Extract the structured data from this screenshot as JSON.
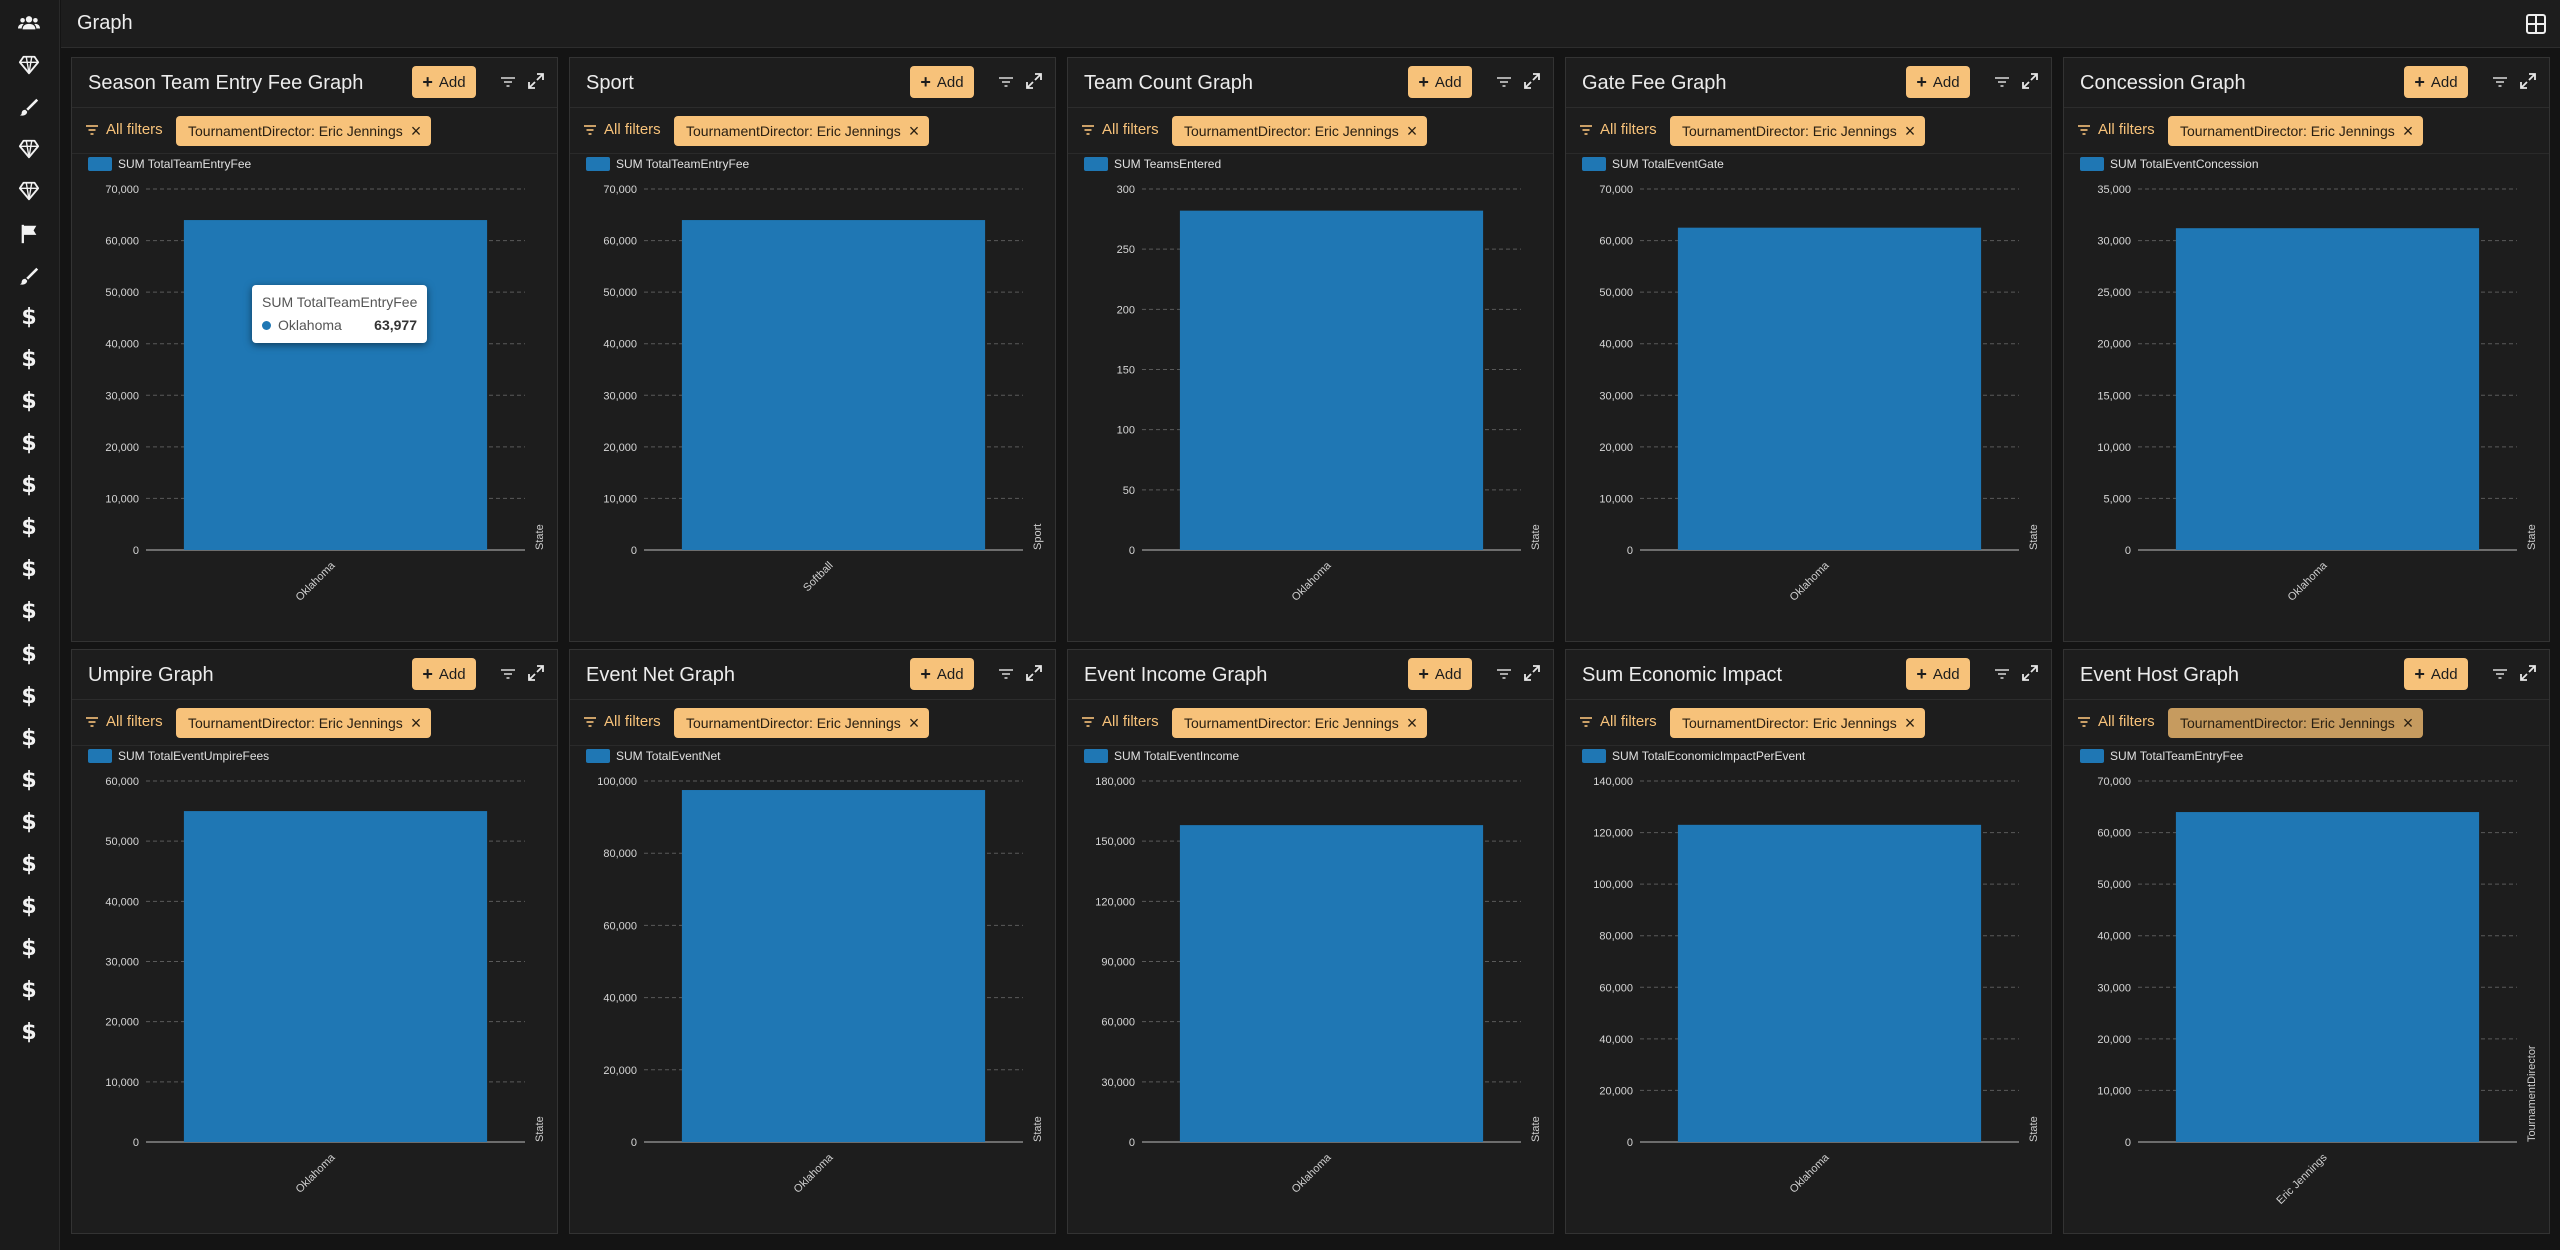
{
  "topbar": {
    "title": "Graph"
  },
  "sidebar": {
    "icons": [
      "users-icon",
      "gem-icon",
      "brush-icon",
      "gem-icon",
      "gem-icon",
      "flag-icon",
      "brush-icon",
      "dollar-icon",
      "dollar-icon",
      "dollar-icon",
      "dollar-icon",
      "dollar-icon",
      "dollar-icon",
      "dollar-icon",
      "dollar-icon",
      "dollar-icon",
      "dollar-icon",
      "dollar-icon",
      "dollar-icon",
      "dollar-icon",
      "dollar-icon",
      "dollar-icon",
      "dollar-icon",
      "dollar-icon",
      "dollar-icon"
    ],
    "dollar_glyph": "$"
  },
  "common": {
    "add_label": "Add",
    "all_filters_label": "All filters",
    "chip_close": "×"
  },
  "colors": {
    "bar": "#1f77b4",
    "accent": "#f7c27a",
    "background": "#1d1d1d"
  },
  "tooltip": {
    "title": "SUM TotalTeamEntryFee",
    "name": "Oklahoma",
    "value": "63,977"
  },
  "panels": [
    {
      "title": "Season Team Entry Fee Graph",
      "filter": "TournamentDirector: Eric Jennings",
      "chart_data": {
        "type": "bar",
        "categories": [
          "Oklahoma"
        ],
        "series": [
          {
            "name": "SUM TotalTeamEntryFee",
            "values": [
              63977
            ]
          }
        ],
        "ylim": [
          0,
          70000
        ],
        "yticks": [
          "0",
          "10,000",
          "20,000",
          "30,000",
          "40,000",
          "50,000",
          "60,000",
          "70,000"
        ],
        "xlabel": "State",
        "grid": true,
        "legend": "top-left"
      }
    },
    {
      "title": "Sport",
      "filter": "TournamentDirector: Eric Jennings",
      "chart_data": {
        "type": "bar",
        "categories": [
          "Softball"
        ],
        "series": [
          {
            "name": "SUM TotalTeamEntryFee",
            "values": [
              63977
            ]
          }
        ],
        "ylim": [
          0,
          70000
        ],
        "yticks": [
          "0",
          "10,000",
          "20,000",
          "30,000",
          "40,000",
          "50,000",
          "60,000",
          "70,000"
        ],
        "xlabel": "Sport",
        "grid": true,
        "legend": "top-left"
      }
    },
    {
      "title": "Team Count Graph",
      "filter": "TournamentDirector: Eric Jennings",
      "chart_data": {
        "type": "bar",
        "categories": [
          "Oklahoma"
        ],
        "series": [
          {
            "name": "SUM TeamsEntered",
            "values": [
              282
            ]
          }
        ],
        "ylim": [
          0,
          300
        ],
        "yticks": [
          "0",
          "50",
          "100",
          "150",
          "200",
          "250",
          "300"
        ],
        "xlabel": "State",
        "grid": true,
        "legend": "top-left"
      }
    },
    {
      "title": "Gate Fee Graph",
      "filter": "TournamentDirector: Eric Jennings",
      "chart_data": {
        "type": "bar",
        "categories": [
          "Oklahoma"
        ],
        "series": [
          {
            "name": "SUM TotalEventGate",
            "values": [
              62500
            ]
          }
        ],
        "ylim": [
          0,
          70000
        ],
        "yticks": [
          "0",
          "10,000",
          "20,000",
          "30,000",
          "40,000",
          "50,000",
          "60,000",
          "70,000"
        ],
        "xlabel": "State",
        "grid": true,
        "legend": "top-left"
      }
    },
    {
      "title": "Concession Graph",
      "filter": "TournamentDirector: Eric Jennings",
      "chart_data": {
        "type": "bar",
        "categories": [
          "Oklahoma"
        ],
        "series": [
          {
            "name": "SUM TotalEventConcession",
            "values": [
              31200
            ]
          }
        ],
        "ylim": [
          0,
          35000
        ],
        "yticks": [
          "0",
          "5,000",
          "10,000",
          "15,000",
          "20,000",
          "25,000",
          "30,000",
          "35,000"
        ],
        "xlabel": "State",
        "grid": true,
        "legend": "top-left"
      }
    },
    {
      "title": "Umpire Graph",
      "filter": "TournamentDirector: Eric Jennings",
      "chart_data": {
        "type": "bar",
        "categories": [
          "Oklahoma"
        ],
        "series": [
          {
            "name": "SUM TotalEventUmpireFees",
            "values": [
              55000
            ]
          }
        ],
        "ylim": [
          0,
          60000
        ],
        "yticks": [
          "0",
          "10,000",
          "20,000",
          "30,000",
          "40,000",
          "50,000",
          "60,000"
        ],
        "xlabel": "State",
        "grid": true,
        "legend": "top-left"
      }
    },
    {
      "title": "Event Net Graph",
      "filter": "TournamentDirector: Eric Jennings",
      "chart_data": {
        "type": "bar",
        "categories": [
          "Oklahoma"
        ],
        "series": [
          {
            "name": "SUM TotalEventNet",
            "values": [
              97500
            ]
          }
        ],
        "ylim": [
          0,
          100000
        ],
        "yticks": [
          "0",
          "20,000",
          "40,000",
          "60,000",
          "80,000",
          "100,000"
        ],
        "xlabel": "State",
        "grid": true,
        "legend": "top-left"
      }
    },
    {
      "title": "Event Income Graph",
      "filter": "TournamentDirector: Eric Jennings",
      "chart_data": {
        "type": "bar",
        "categories": [
          "Oklahoma"
        ],
        "series": [
          {
            "name": "SUM TotalEventIncome",
            "values": [
              158000
            ]
          }
        ],
        "ylim": [
          0,
          180000
        ],
        "yticks": [
          "0",
          "30,000",
          "60,000",
          "90,000",
          "120,000",
          "150,000",
          "180,000"
        ],
        "xlabel": "State",
        "grid": true,
        "legend": "top-left"
      }
    },
    {
      "title": "Sum Economic Impact",
      "filter": "TournamentDirector: Eric Jennings",
      "chart_data": {
        "type": "bar",
        "categories": [
          "Oklahoma"
        ],
        "series": [
          {
            "name": "SUM TotalEconomicImpactPerEvent",
            "values": [
              123000
            ]
          }
        ],
        "ylim": [
          0,
          140000
        ],
        "yticks": [
          "0",
          "20,000",
          "40,000",
          "60,000",
          "80,000",
          "100,000",
          "120,000",
          "140,000"
        ],
        "xlabel": "State",
        "grid": true,
        "legend": "top-left"
      }
    },
    {
      "title": "Event Host Graph",
      "filter": "TournamentDirector: Eric Jennings",
      "filter_dim": true,
      "chart_data": {
        "type": "bar",
        "categories": [
          "Eric Jennings"
        ],
        "series": [
          {
            "name": "SUM TotalTeamEntryFee",
            "values": [
              63977
            ]
          }
        ],
        "ylim": [
          0,
          70000
        ],
        "yticks": [
          "0",
          "10,000",
          "20,000",
          "30,000",
          "40,000",
          "50,000",
          "60,000",
          "70,000"
        ],
        "xlabel": "TournamentDirector",
        "grid": true,
        "legend": "top-left"
      }
    }
  ]
}
